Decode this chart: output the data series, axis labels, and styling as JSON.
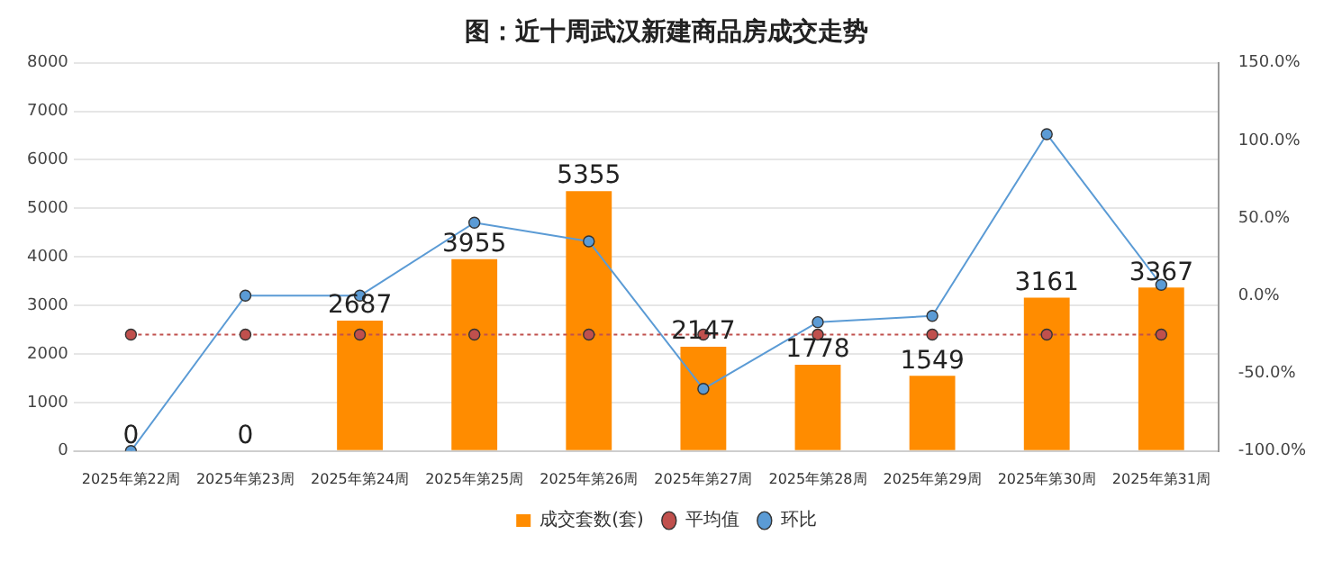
{
  "chart_data": {
    "type": "bar",
    "title": "图：近十周武汉新建商品房成交走势",
    "categories": [
      "2025年第22周",
      "2025年第23周",
      "2025年第24周",
      "2025年第25周",
      "2025年第26周",
      "2025年第27周",
      "2025年第28周",
      "2025年第29周",
      "2025年第30周",
      "2025年第31周"
    ],
    "series": [
      {
        "name": "成交套数(套)",
        "color": "#ff8c00",
        "values": [
          0,
          0,
          2687,
          3955,
          5355,
          2147,
          1778,
          1549,
          3161,
          3367
        ],
        "value_labels": [
          "0",
          "0",
          "2687",
          "3955",
          "5355",
          "2147",
          "1778",
          "1549",
          "3161",
          "3367"
        ]
      },
      {
        "name": "平均值",
        "type": "line",
        "color": "#c0504d",
        "line_style": "dotted",
        "marker": "circle",
        "values": [
          2400,
          2400,
          2400,
          2400,
          2400,
          2400,
          2400,
          2400,
          2400,
          2400
        ]
      },
      {
        "name": "环比",
        "type": "line",
        "axis": "y2",
        "color": "#5b9bd5",
        "line_style": "solid",
        "marker": "circle",
        "values": [
          -100,
          0,
          0,
          47,
          35,
          -60,
          -17,
          -13,
          104,
          7
        ]
      }
    ],
    "ylim": [
      0,
      8000
    ],
    "yticks": [
      0,
      1000,
      2000,
      3000,
      4000,
      5000,
      6000,
      7000,
      8000
    ],
    "y2lim": [
      -100,
      150
    ],
    "y2ticks": [
      {
        "value": -100,
        "label": "-100.0%"
      },
      {
        "value": -50,
        "label": "-50.0%"
      },
      {
        "value": 0,
        "label": "0.0%"
      },
      {
        "value": 50,
        "label": "50.0%"
      },
      {
        "value": 100,
        "label": "100.0%"
      },
      {
        "value": 150,
        "label": "150.0%"
      }
    ],
    "grid": "y",
    "legend": "bottom"
  }
}
